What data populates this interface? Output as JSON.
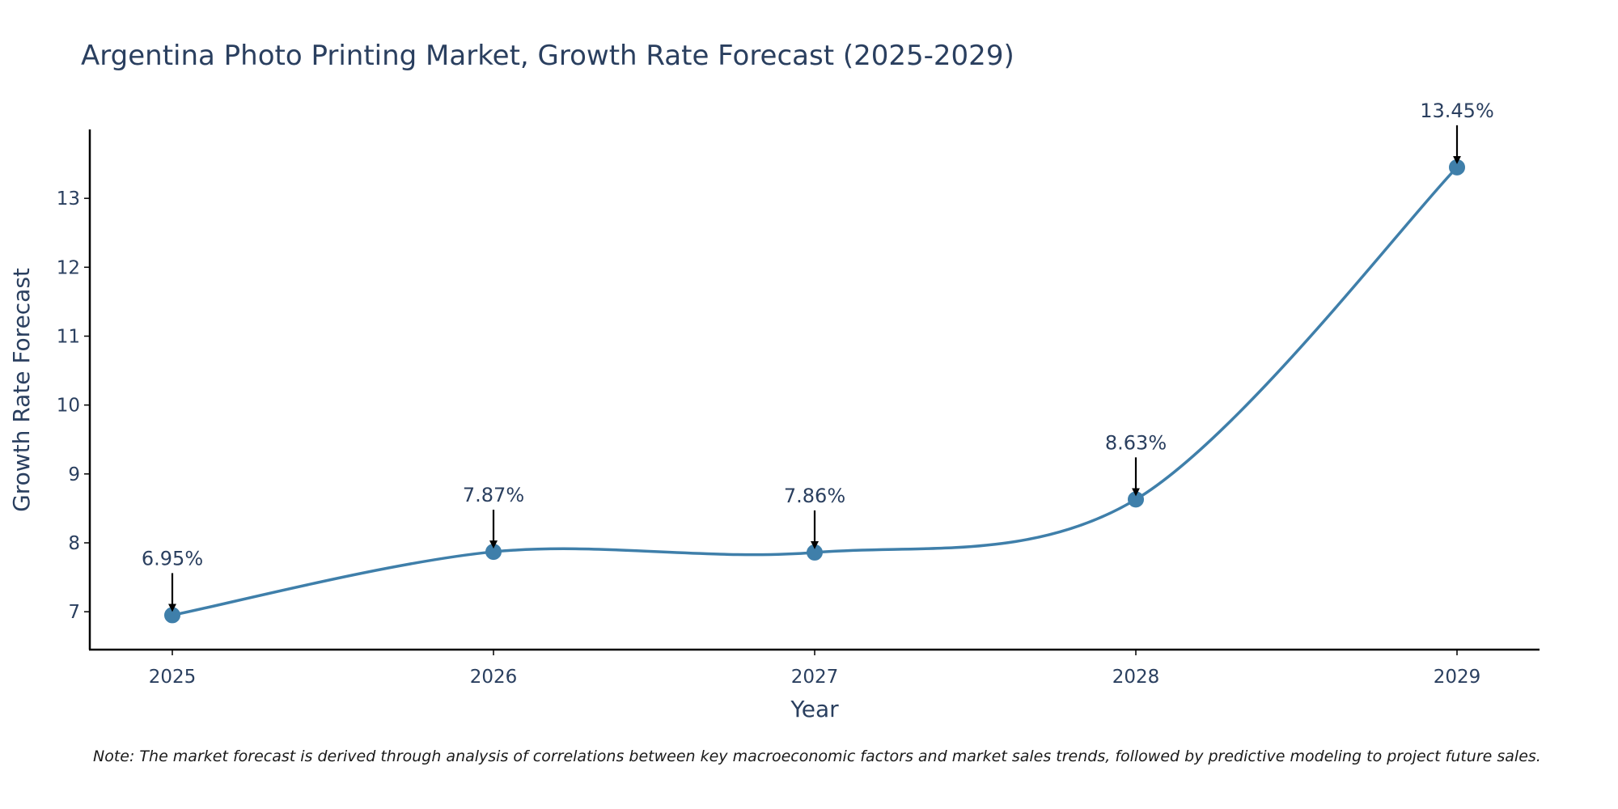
{
  "chart_data": {
    "type": "line",
    "title": "Argentina Photo Printing Market, Growth Rate Forecast (2025-2029)",
    "xlabel": "Year",
    "ylabel": "Growth Rate Forecast",
    "categories": [
      "2025",
      "2026",
      "2027",
      "2028",
      "2029"
    ],
    "series": [
      {
        "name": "Growth Rate Forecast",
        "values": [
          6.95,
          7.87,
          7.86,
          8.63,
          13.45
        ],
        "color": "#3f7faa"
      }
    ],
    "data_labels": [
      "6.95%",
      "7.87%",
      "7.86%",
      "8.63%",
      "13.45%"
    ],
    "ylim": [
      6.45,
      14.0
    ],
    "yticks": [
      7,
      8,
      9,
      10,
      11,
      12,
      13
    ],
    "grid": false,
    "note": "Note: The market forecast is derived through analysis of correlations between key macroeconomic factors and market sales trends, followed by predictive modeling to project future sales."
  }
}
